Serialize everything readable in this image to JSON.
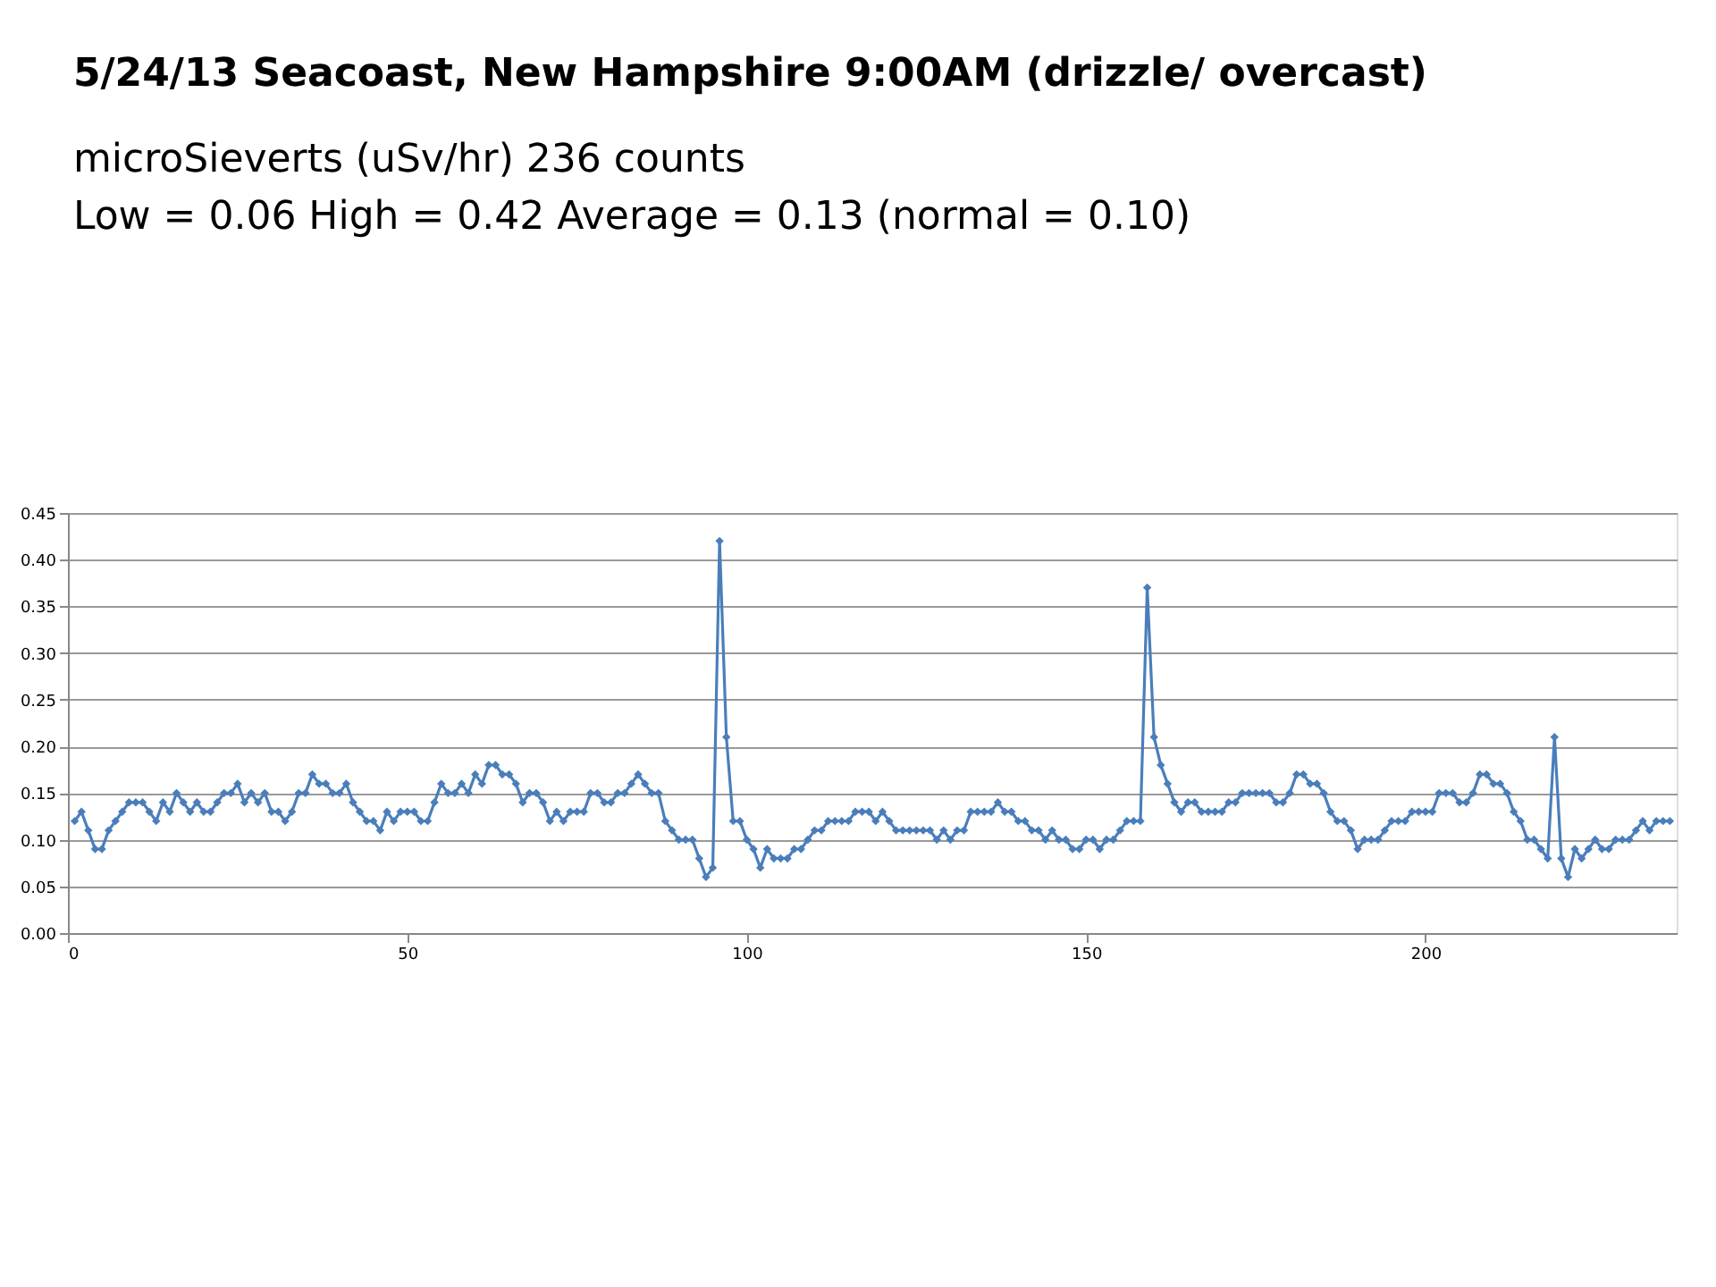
{
  "chart_data": {
    "type": "line",
    "title": "5/24/13  Seacoast, New Hampshire  9:00AM   (drizzle/ overcast)",
    "subtitle": "microSieverts  (uSv/hr)    236 counts\nLow = 0.06  High = 0.42    Average = 0.13   (normal = 0.10)",
    "x": [
      1,
      2,
      3,
      4,
      5,
      6,
      7,
      8,
      9,
      10,
      11,
      12,
      13,
      14,
      15,
      16,
      17,
      18,
      19,
      20,
      21,
      22,
      23,
      24,
      25,
      26,
      27,
      28,
      29,
      30,
      31,
      32,
      33,
      34,
      35,
      36,
      37,
      38,
      39,
      40,
      41,
      42,
      43,
      44,
      45,
      46,
      47,
      48,
      49,
      50,
      51,
      52,
      53,
      54,
      55,
      56,
      57,
      58,
      59,
      60,
      61,
      62,
      63,
      64,
      65,
      66,
      67,
      68,
      69,
      70,
      71,
      72,
      73,
      74,
      75,
      76,
      77,
      78,
      79,
      80,
      81,
      82,
      83,
      84,
      85,
      86,
      87,
      88,
      89,
      90,
      91,
      92,
      93,
      94,
      95,
      96,
      97,
      98,
      99,
      100,
      101,
      102,
      103,
      104,
      105,
      106,
      107,
      108,
      109,
      110,
      111,
      112,
      113,
      114,
      115,
      116,
      117,
      118,
      119,
      120,
      121,
      122,
      123,
      124,
      125,
      126,
      127,
      128,
      129,
      130,
      131,
      132,
      133,
      134,
      135,
      136,
      137,
      138,
      139,
      140,
      141,
      142,
      143,
      144,
      145,
      146,
      147,
      148,
      149,
      150,
      151,
      152,
      153,
      154,
      155,
      156,
      157,
      158,
      159,
      160,
      161,
      162,
      163,
      164,
      165,
      166,
      167,
      168,
      169,
      170,
      171,
      172,
      173,
      174,
      175,
      176,
      177,
      178,
      179,
      180,
      181,
      182,
      183,
      184,
      185,
      186,
      187,
      188,
      189,
      190,
      191,
      192,
      193,
      194,
      195,
      196,
      197,
      198,
      199,
      200,
      201,
      202,
      203,
      204,
      205,
      206,
      207,
      208,
      209,
      210,
      211,
      212,
      213,
      214,
      215,
      216,
      217,
      218,
      219,
      220,
      221,
      222,
      223,
      224,
      225,
      226,
      227,
      228,
      229,
      230,
      231,
      232,
      233,
      234,
      235,
      236
    ],
    "series": [
      {
        "color": "#4a7ebb",
        "values": [
          0.12,
          0.13,
          0.11,
          0.09,
          0.09,
          0.11,
          0.12,
          0.13,
          0.14,
          0.14,
          0.14,
          0.13,
          0.12,
          0.14,
          0.13,
          0.15,
          0.14,
          0.13,
          0.14,
          0.13,
          0.13,
          0.14,
          0.15,
          0.15,
          0.16,
          0.14,
          0.15,
          0.14,
          0.15,
          0.13,
          0.13,
          0.12,
          0.13,
          0.15,
          0.15,
          0.17,
          0.16,
          0.16,
          0.15,
          0.15,
          0.16,
          0.14,
          0.13,
          0.12,
          0.12,
          0.11,
          0.13,
          0.12,
          0.13,
          0.13,
          0.13,
          0.12,
          0.12,
          0.14,
          0.16,
          0.15,
          0.15,
          0.16,
          0.15,
          0.17,
          0.16,
          0.18,
          0.18,
          0.17,
          0.17,
          0.16,
          0.14,
          0.15,
          0.15,
          0.14,
          0.12,
          0.13,
          0.12,
          0.13,
          0.13,
          0.13,
          0.15,
          0.15,
          0.14,
          0.14,
          0.15,
          0.15,
          0.16,
          0.17,
          0.16,
          0.15,
          0.15,
          0.12,
          0.11,
          0.1,
          0.1,
          0.1,
          0.08,
          0.06,
          0.07,
          0.42,
          0.21,
          0.12,
          0.12,
          0.1,
          0.09,
          0.07,
          0.09,
          0.08,
          0.08,
          0.08,
          0.09,
          0.09,
          0.1,
          0.11,
          0.11,
          0.12,
          0.12,
          0.12,
          0.12,
          0.13,
          0.13,
          0.13,
          0.12,
          0.13,
          0.12,
          0.11,
          0.11,
          0.11,
          0.11,
          0.11,
          0.11,
          0.1,
          0.11,
          0.1,
          0.11,
          0.11,
          0.13,
          0.13,
          0.13,
          0.13,
          0.14,
          0.13,
          0.13,
          0.12,
          0.12,
          0.11,
          0.11,
          0.1,
          0.11,
          0.1,
          0.1,
          0.09,
          0.09,
          0.1,
          0.1,
          0.09,
          0.1,
          0.1,
          0.11,
          0.12,
          0.12,
          0.12,
          0.37,
          0.21,
          0.18,
          0.16,
          0.14,
          0.13,
          0.14,
          0.14,
          0.13,
          0.13,
          0.13,
          0.13,
          0.14,
          0.14,
          0.15,
          0.15,
          0.15,
          0.15,
          0.15,
          0.14,
          0.14,
          0.15,
          0.17,
          0.17,
          0.16,
          0.16,
          0.15,
          0.13,
          0.12,
          0.12,
          0.11,
          0.09,
          0.1,
          0.1,
          0.1,
          0.11,
          0.12,
          0.12,
          0.12,
          0.13,
          0.13,
          0.13,
          0.13,
          0.15,
          0.15,
          0.15,
          0.14,
          0.14,
          0.15,
          0.17,
          0.17,
          0.16,
          0.16,
          0.15,
          0.13,
          0.12,
          0.1,
          0.1,
          0.09,
          0.08,
          0.21,
          0.08,
          0.06,
          0.09,
          0.08,
          0.09,
          0.1,
          0.09,
          0.09,
          0.1,
          0.1,
          0.1,
          0.11,
          0.12,
          0.11,
          0.12,
          0.12,
          0.12
        ]
      }
    ],
    "xlim": [
      0,
      237
    ],
    "xticks": [
      0,
      50,
      100,
      150,
      200
    ],
    "ylim": [
      0,
      0.45
    ],
    "yticks": [
      {
        "value": 0,
        "label": "0.00"
      },
      {
        "value": 0.05,
        "label": "0.05"
      },
      {
        "value": 0.1,
        "label": "0.10"
      },
      {
        "value": 0.15,
        "label": "0.15"
      },
      {
        "value": 0.2,
        "label": "0.20"
      },
      {
        "value": 0.25,
        "label": "0.25"
      },
      {
        "value": 0.3,
        "label": "0.30"
      },
      {
        "value": 0.35,
        "label": "0.35"
      },
      {
        "value": 0.4,
        "label": "0.40"
      },
      {
        "value": 0.45,
        "label": "0.45"
      }
    ],
    "grid": "y",
    "marker": "diamond",
    "line_style": "solid"
  }
}
